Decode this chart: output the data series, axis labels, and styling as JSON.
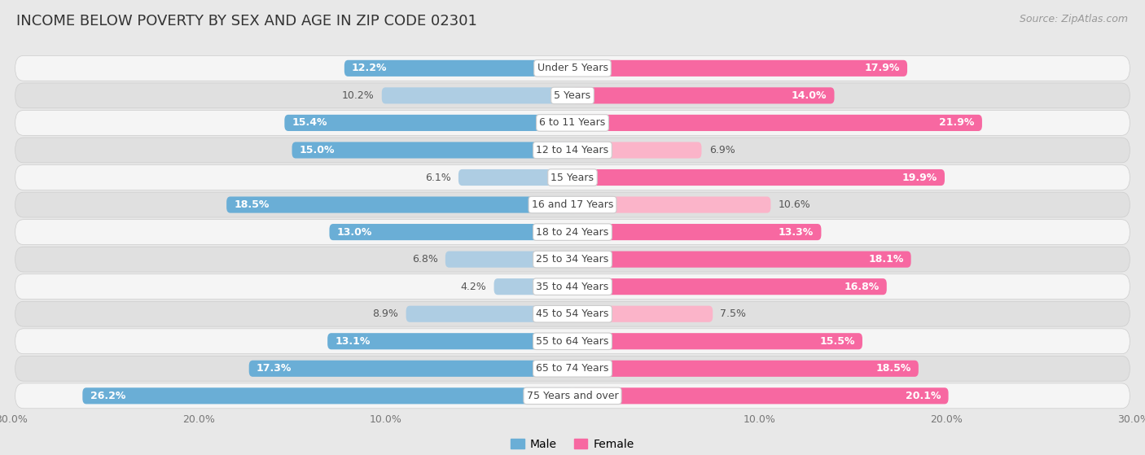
{
  "title": "INCOME BELOW POVERTY BY SEX AND AGE IN ZIP CODE 02301",
  "source": "Source: ZipAtlas.com",
  "categories": [
    "Under 5 Years",
    "5 Years",
    "6 to 11 Years",
    "12 to 14 Years",
    "15 Years",
    "16 and 17 Years",
    "18 to 24 Years",
    "25 to 34 Years",
    "35 to 44 Years",
    "45 to 54 Years",
    "55 to 64 Years",
    "65 to 74 Years",
    "75 Years and over"
  ],
  "male_values": [
    12.2,
    10.2,
    15.4,
    15.0,
    6.1,
    18.5,
    13.0,
    6.8,
    4.2,
    8.9,
    13.1,
    17.3,
    26.2
  ],
  "female_values": [
    17.9,
    14.0,
    21.9,
    6.9,
    19.9,
    10.6,
    13.3,
    18.1,
    16.8,
    7.5,
    15.5,
    18.5,
    20.1
  ],
  "male_color_dark": "#6aaed6",
  "male_color_light": "#aecde3",
  "female_color_dark": "#f768a1",
  "female_color_light": "#fbb4c9",
  "background_color": "#e8e8e8",
  "row_bg_white": "#f5f5f5",
  "row_bg_gray": "#e0e0e0",
  "xlim": 30.0,
  "legend_male": "Male",
  "legend_female": "Female",
  "bar_height": 0.6,
  "title_fontsize": 13,
  "source_fontsize": 9,
  "label_fontsize": 9,
  "category_fontsize": 9,
  "axis_fontsize": 9,
  "inside_threshold": 12.0
}
